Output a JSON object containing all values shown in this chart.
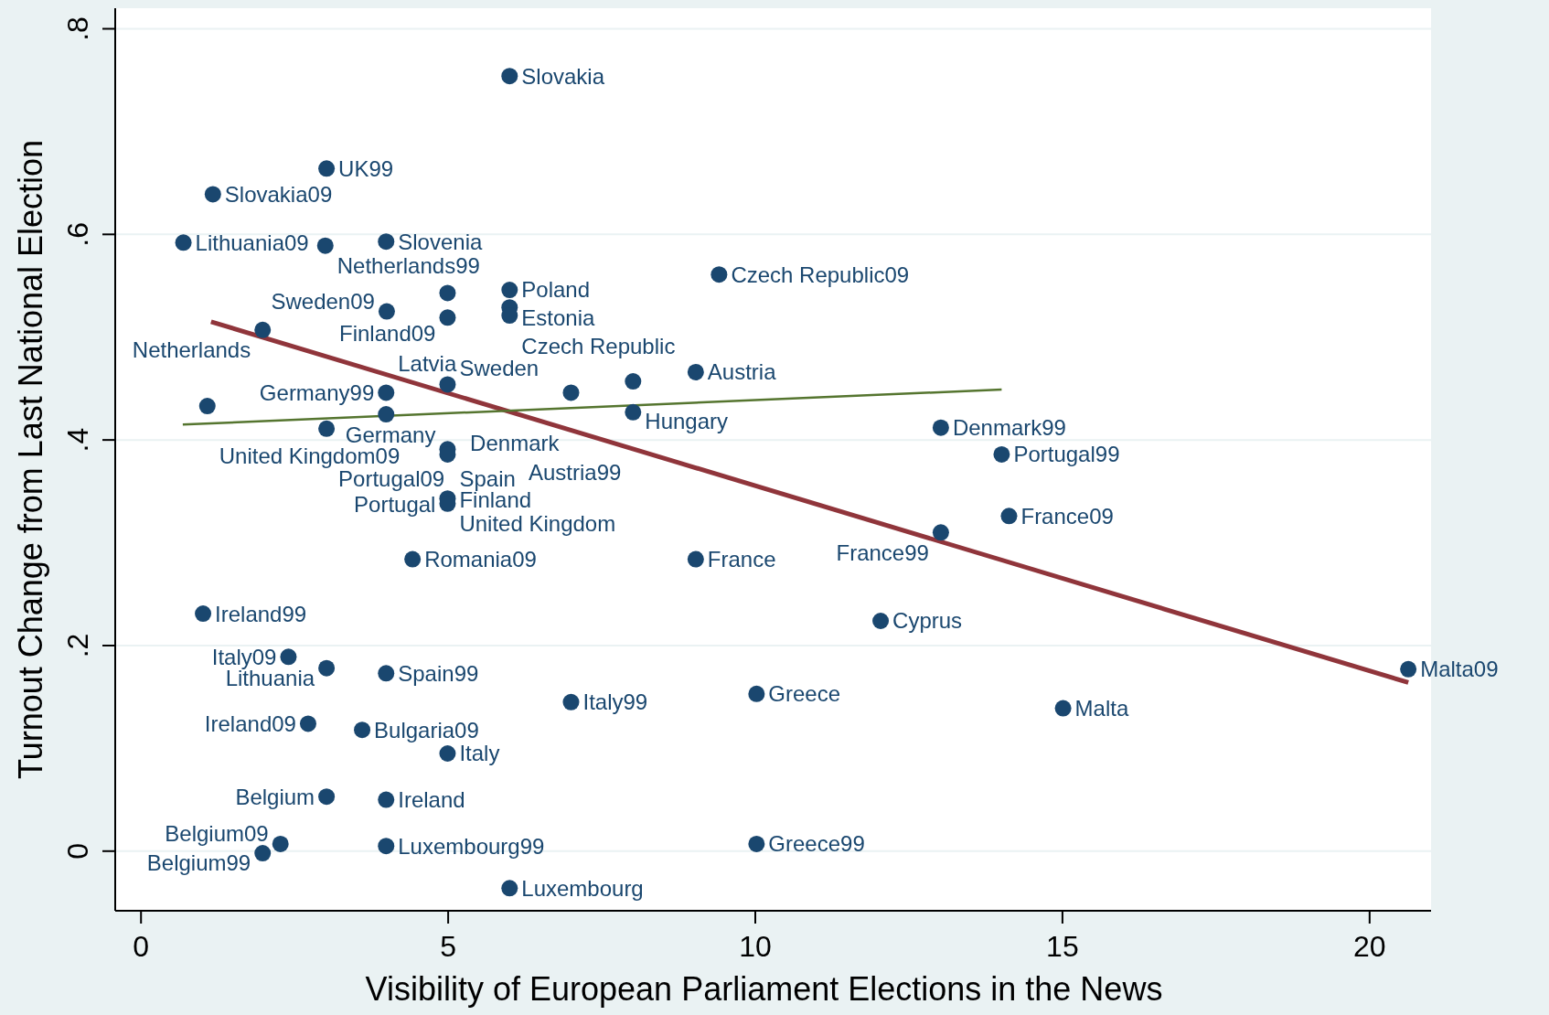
{
  "chart_data": {
    "type": "scatter",
    "xlabel": "Visibility of European Parliament Elections in the News",
    "ylabel": "Turnout Change from Last National Election",
    "xlim": [
      -0.42,
      21.0
    ],
    "ylim": [
      -0.058,
      0.82
    ],
    "xticks": [
      0,
      5,
      10,
      15,
      20
    ],
    "yticks": [
      0,
      {
        "value": 0.2,
        "label": ".2"
      },
      {
        "value": 0.4,
        "label": ".4"
      },
      {
        "value": 0.6,
        "label": ".6"
      },
      {
        "value": 0.8,
        "label": ".8"
      }
    ],
    "grid": "y",
    "marker": "circle",
    "series": [
      {
        "type": "scatter",
        "color": "#1a476f",
        "x": [
          6.0,
          3.02,
          1.17,
          0.69,
          3.0,
          3.99,
          9.41,
          4.99,
          6.0,
          4.0,
          6.0,
          6.0,
          4.99,
          1.98,
          9.03,
          8.01,
          4.99,
          7.0,
          3.99,
          1.08,
          8.01,
          3.99,
          3.02,
          13.02,
          14.01,
          4.99,
          4.99,
          4.99,
          4.99,
          14.13,
          13.02,
          4.42,
          9.03,
          1.01,
          12.04,
          2.4,
          3.02,
          3.99,
          20.63,
          10.02,
          7.0,
          15.01,
          2.72,
          3.6,
          4.99,
          3.02,
          3.99,
          10.02,
          2.27,
          3.99,
          1.98,
          6.0
        ],
        "values": [
          0.754,
          0.664,
          0.639,
          0.592,
          0.589,
          0.593,
          0.561,
          0.543,
          0.546,
          0.525,
          0.529,
          0.521,
          0.519,
          0.507,
          0.466,
          0.457,
          0.454,
          0.446,
          0.446,
          0.433,
          0.427,
          0.425,
          0.411,
          0.412,
          0.386,
          0.391,
          0.386,
          0.343,
          0.338,
          0.326,
          0.31,
          0.284,
          0.284,
          0.231,
          0.224,
          0.189,
          0.178,
          0.173,
          0.177,
          0.153,
          0.145,
          0.139,
          0.124,
          0.118,
          0.095,
          0.053,
          0.05,
          0.007,
          0.007,
          0.005,
          -0.002,
          -0.036
        ],
        "value_labels": [
          "Slovakia",
          "UK99",
          "Slovakia09",
          "Lithuania09",
          "Netherlands99",
          "Slovenia",
          "Czech Republic09",
          "Finland09",
          "Poland",
          "Sweden09",
          "Estonia",
          "Czech Republic",
          "Sweden",
          "Netherlands",
          "Austria",
          "Hungary",
          "Germany",
          "Denmark",
          "Germany99",
          "United Kingdom09",
          "Austria99",
          "Latvia",
          "Portugal09",
          "Denmark99",
          "Portugal99",
          "Finland",
          "Portugal",
          "Spain",
          "United Kingdom",
          "France09",
          "France99",
          "Romania09",
          "France",
          "Ireland99",
          "Cyprus",
          "Italy09",
          "Lithuania",
          "Spain99",
          "Malta09",
          "Greece",
          "Italy99",
          "Malta",
          "Ireland09",
          "Bulgaria09",
          "Italy",
          "Belgium",
          "Ireland",
          "Greece99",
          "Belgium09",
          "Luxembourg99",
          "Belgium99",
          "Luxembourg"
        ]
      },
      {
        "type": "line",
        "marker": "none",
        "color": "#90353b",
        "x": [
          1.14,
          20.63
        ],
        "values": [
          0.515,
          0.164
        ]
      },
      {
        "type": "line",
        "marker": "none",
        "color": "#55752f",
        "x": [
          0.68,
          14.01
        ],
        "values": [
          0.415,
          0.449
        ]
      }
    ]
  }
}
